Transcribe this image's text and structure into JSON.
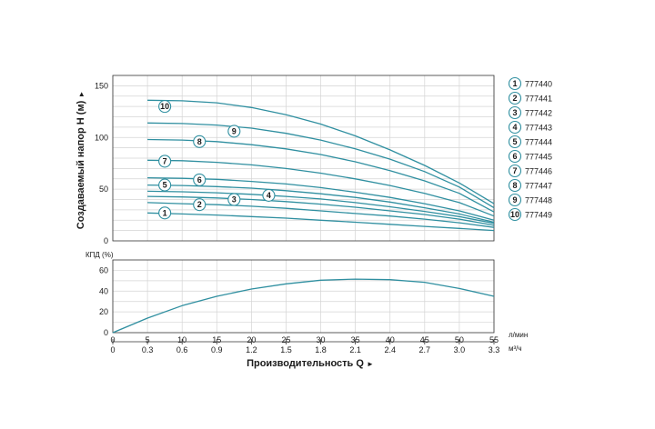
{
  "chart_data": [
    {
      "type": "line",
      "title": "",
      "xlabel": "",
      "ylabel": "Создаваемый напор H (м)",
      "ylabel_arrow": "►",
      "xlim": [
        0,
        55
      ],
      "ylim": [
        0,
        160
      ],
      "xticks": [
        "0",
        "5",
        "10",
        "15",
        "20",
        "25",
        "30",
        "35",
        "40",
        "45",
        "50",
        "55"
      ],
      "xtick_values": [
        0,
        5,
        10,
        15,
        20,
        25,
        30,
        35,
        40,
        45,
        50,
        55
      ],
      "yticks": [
        "0",
        "50",
        "100",
        "150"
      ],
      "ytick_values": [
        0,
        50,
        100,
        150
      ],
      "grid": true,
      "legend_position": "right",
      "line_color": "#2f8fa0",
      "series": [
        {
          "name": "777440",
          "marker": "1",
          "label_at": [
            7.5,
            27
          ],
          "x": [
            5,
            10,
            15,
            20,
            25,
            30,
            35,
            40,
            45,
            50,
            55
          ],
          "values": [
            27,
            26,
            25,
            23.5,
            22,
            20,
            18,
            16,
            14,
            12,
            10
          ]
        },
        {
          "name": "777441",
          "marker": "2",
          "label_at": [
            12.5,
            35
          ],
          "x": [
            5,
            10,
            15,
            20,
            25,
            30,
            35,
            40,
            45,
            50,
            55
          ],
          "values": [
            37,
            36,
            35,
            33.5,
            31.5,
            29,
            26.5,
            24,
            21,
            17.5,
            13
          ]
        },
        {
          "name": "777442",
          "marker": "3",
          "label_at": [
            17.5,
            40
          ],
          "x": [
            5,
            10,
            15,
            20,
            25,
            30,
            35,
            40,
            45,
            50,
            55
          ],
          "values": [
            43,
            42.5,
            41.5,
            40,
            38,
            35.5,
            32.5,
            29,
            25.5,
            21,
            15
          ]
        },
        {
          "name": "777443",
          "marker": "4",
          "label_at": [
            22.5,
            44
          ],
          "x": [
            5,
            10,
            15,
            20,
            25,
            30,
            35,
            40,
            45,
            50,
            55
          ],
          "values": [
            48,
            47.5,
            46.5,
            45,
            43,
            40.5,
            37,
            33,
            28.5,
            23.5,
            17
          ]
        },
        {
          "name": "777444",
          "marker": "5",
          "label_at": [
            7.5,
            54
          ],
          "x": [
            5,
            10,
            15,
            20,
            25,
            30,
            35,
            40,
            45,
            50,
            55
          ],
          "values": [
            54,
            53.5,
            52.5,
            51,
            48.5,
            45.5,
            42,
            37.5,
            32,
            26,
            18
          ]
        },
        {
          "name": "777445",
          "marker": "6",
          "label_at": [
            12.5,
            59
          ],
          "x": [
            5,
            10,
            15,
            20,
            25,
            30,
            35,
            40,
            45,
            50,
            55
          ],
          "values": [
            61,
            60.5,
            59.5,
            57.5,
            55,
            51.5,
            47,
            42,
            36,
            29,
            20
          ]
        },
        {
          "name": "777446",
          "marker": "7",
          "label_at": [
            7.5,
            77
          ],
          "x": [
            5,
            10,
            15,
            20,
            25,
            30,
            35,
            40,
            45,
            50,
            55
          ],
          "values": [
            78,
            77.5,
            76,
            73.5,
            70,
            65.5,
            60,
            53.5,
            46,
            37,
            24
          ]
        },
        {
          "name": "777447",
          "marker": "8",
          "label_at": [
            12.5,
            96
          ],
          "x": [
            5,
            10,
            15,
            20,
            25,
            30,
            35,
            40,
            45,
            50,
            55
          ],
          "values": [
            98,
            97.5,
            96,
            93,
            89,
            83.5,
            76.5,
            68,
            58,
            46,
            28
          ]
        },
        {
          "name": "777448",
          "marker": "9",
          "label_at": [
            17.5,
            106
          ],
          "x": [
            5,
            10,
            15,
            20,
            25,
            30,
            35,
            40,
            45,
            50,
            55
          ],
          "values": [
            114,
            113.5,
            112,
            109,
            104,
            97.5,
            89,
            79,
            67,
            52,
            32
          ]
        },
        {
          "name": "777449",
          "marker": "10",
          "label_at": [
            7.5,
            130
          ],
          "x": [
            5,
            10,
            15,
            20,
            25,
            30,
            35,
            40,
            45,
            50,
            55
          ],
          "values": [
            136,
            135.5,
            133.5,
            129,
            122,
            113,
            101.5,
            88,
            73,
            56,
            36
          ]
        }
      ]
    },
    {
      "type": "line",
      "title": "",
      "ylabel": "КПД (%)",
      "xlim": [
        0,
        55
      ],
      "ylim": [
        0,
        70
      ],
      "yticks": [
        "0",
        "20",
        "40",
        "60"
      ],
      "ytick_values": [
        0,
        20,
        40,
        60
      ],
      "grid": true,
      "series": [
        {
          "x": [
            0,
            5,
            10,
            15,
            20,
            25,
            30,
            35,
            40,
            45,
            50,
            55
          ],
          "values": [
            0,
            14,
            26,
            35,
            42,
            47,
            50.5,
            51.5,
            51,
            48.5,
            42.5,
            35
          ]
        }
      ],
      "xaxis_lpm": {
        "ticks": [
          "0",
          "5",
          "10",
          "15",
          "20",
          "25",
          "30",
          "35",
          "40",
          "45",
          "50",
          "55"
        ],
        "values": [
          0,
          5,
          10,
          15,
          20,
          25,
          30,
          35,
          40,
          45,
          50,
          55
        ],
        "unit": "л/мин"
      },
      "xaxis_m3h": {
        "ticks": [
          "0",
          "0.3",
          "0.6",
          "0.9",
          "1.2",
          "1.5",
          "1.8",
          "2.1",
          "2.4",
          "2.7",
          "3.0",
          "3.3"
        ],
        "values": [
          0,
          5,
          10,
          15,
          20,
          25,
          30,
          35,
          40,
          45,
          50,
          55
        ],
        "unit": "м³/ч"
      },
      "xlabel": "Производительность Q",
      "xlabel_arrow": "►"
    }
  ]
}
